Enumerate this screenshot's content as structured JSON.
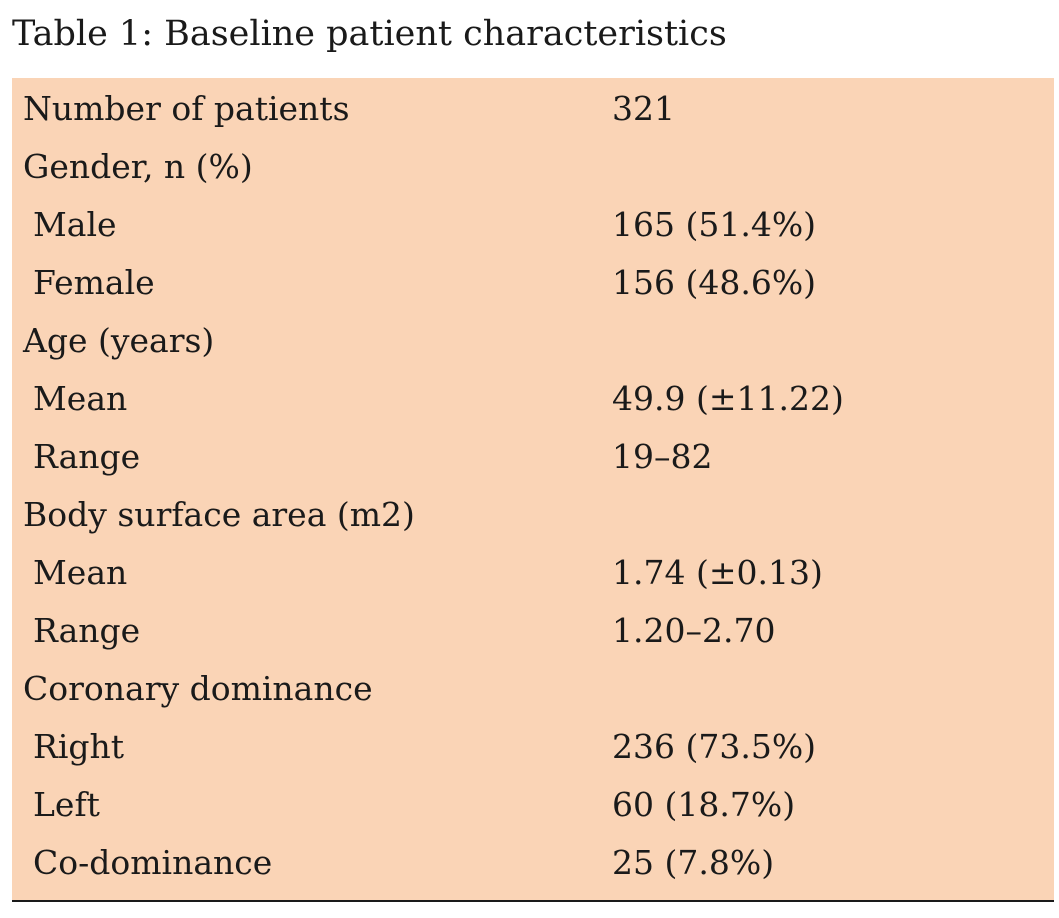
{
  "caption": "Table 1: Baseline patient characteristics",
  "rows": [
    {
      "label": "Number of patients",
      "value": "321"
    },
    {
      "label": "Gender, n (%)",
      "value": ""
    },
    {
      "label": "Male",
      "value": "165 (51.4%)"
    },
    {
      "label": "Female",
      "value": "156 (48.6%)"
    },
    {
      "label": "Age (years)",
      "value": ""
    },
    {
      "label": "Mean",
      "value": "49.9 (±11.22)"
    },
    {
      "label": "Range",
      "value": "19–82"
    },
    {
      "label": "Body surface area (m2)",
      "value": ""
    },
    {
      "label": "Mean",
      "value": "1.74 (±0.13)"
    },
    {
      "label": "Range",
      "value": "1.20–2.70"
    },
    {
      "label": "Coronary dominance",
      "value": ""
    },
    {
      "label": "Right",
      "value": "236 (73.5%)"
    },
    {
      "label": "Left",
      "value": "60 (18.7%)"
    },
    {
      "label": "Co-dominance",
      "value": "25 (7.8%)"
    }
  ]
}
